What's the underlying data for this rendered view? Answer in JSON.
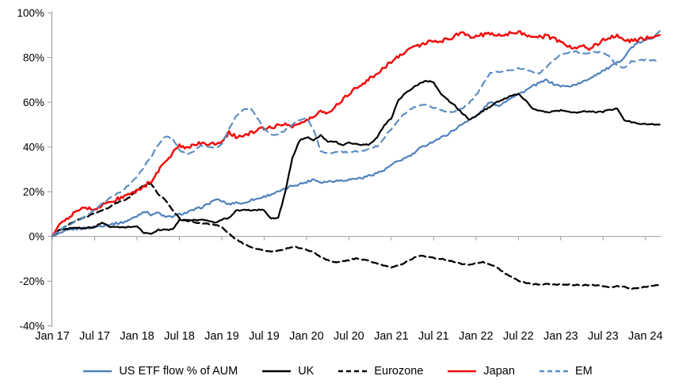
{
  "chart_data": {
    "type": "line",
    "title": "",
    "x_tick_labels": [
      "Jan 17",
      "Jul 17",
      "Jan 18",
      "Jul 18",
      "Jan 19",
      "Jul 19",
      "Jan 20",
      "Jul 20",
      "Jan 21",
      "Jul 21",
      "Jan 22",
      "Jul 22",
      "Jan 23",
      "Jul 23",
      "Jan 24"
    ],
    "x_start": "Jan 2017",
    "x_end": "Mar 2024",
    "x_frequency": "monthly",
    "x_label_every_months": 6,
    "y_axis": {
      "min": -40,
      "max": 100,
      "step": 20,
      "tick_labels": [
        "100%",
        "80%",
        "60%",
        "40%",
        "20%",
        "0%",
        "-20%",
        "-40%"
      ],
      "format": "percent",
      "zero_line": true,
      "grid": false
    },
    "legend_position": "bottom",
    "series": [
      {
        "name": "US ETF flow % of AUM",
        "color": "#4f81bd",
        "line_style": "solid",
        "values": [
          0,
          1.5,
          2.5,
          3.2,
          3.6,
          3.8,
          4.2,
          4.8,
          5.3,
          5.8,
          6.3,
          7.5,
          9.2,
          11.3,
          9.8,
          10.6,
          8.6,
          8.9,
          9.9,
          10.6,
          11.8,
          12.9,
          14.3,
          16.5,
          15.8,
          14.3,
          15.3,
          14.6,
          16.2,
          16.8,
          17.8,
          18.9,
          19.9,
          21.2,
          22.7,
          23.4,
          24.3,
          25.6,
          24.2,
          24.6,
          24.9,
          25.1,
          25.4,
          25.9,
          26.2,
          27.4,
          28.4,
          29.6,
          31.9,
          33.6,
          35.1,
          36.6,
          39.3,
          41.0,
          42.6,
          44.1,
          45.7,
          47.9,
          50.1,
          52.3,
          53.6,
          56.8,
          60.3,
          58.2,
          60.0,
          62.3,
          63.6,
          65.2,
          67.1,
          68.6,
          70.0,
          68.1,
          67.3,
          67.0,
          67.9,
          68.8,
          70.6,
          72.4,
          74.1,
          75.7,
          77.6,
          80.2,
          84.5,
          86.6,
          87.6,
          88.9,
          91.8
        ]
      },
      {
        "name": "UK",
        "color": "#000000",
        "line_style": "solid",
        "values": [
          0,
          3.0,
          3.6,
          3.8,
          3.7,
          3.9,
          4.1,
          6.3,
          4.4,
          4.1,
          4.0,
          4.3,
          4.6,
          1.5,
          1.2,
          2.9,
          3.0,
          3.1,
          7.2,
          7.3,
          7.2,
          7.4,
          7.3,
          5.9,
          7.6,
          8.3,
          11.6,
          11.8,
          11.7,
          11.9,
          11.8,
          7.9,
          8.3,
          20.0,
          35.0,
          42.8,
          44.4,
          43.2,
          45.3,
          42.2,
          42.6,
          40.6,
          41.9,
          41.3,
          40.9,
          41.2,
          44.2,
          49.8,
          52.8,
          61.0,
          64.1,
          66.3,
          68.3,
          69.6,
          69.0,
          63.9,
          61.0,
          58.5,
          55.2,
          52.4,
          53.6,
          56.2,
          58.1,
          60.1,
          61.6,
          62.8,
          63.6,
          60.8,
          57.3,
          56.1,
          55.5,
          55.9,
          56.4,
          55.8,
          55.4,
          55.7,
          56.0,
          55.5,
          55.8,
          56.6,
          57.2,
          52.0,
          51.1,
          50.6,
          50.3,
          50.1,
          50.0
        ]
      },
      {
        "name": "Eurozone",
        "color": "#000000",
        "line_style": "dashed",
        "values": [
          0,
          2.5,
          4.8,
          6.4,
          7.8,
          9.0,
          10.3,
          11.6,
          13.0,
          14.9,
          16.0,
          17.5,
          21.0,
          22.8,
          23.6,
          19.0,
          16.2,
          12.0,
          8.1,
          7.0,
          6.4,
          6.0,
          5.6,
          5.3,
          4.0,
          1.4,
          -1.2,
          -3.2,
          -4.6,
          -5.6,
          -6.4,
          -6.8,
          -6.5,
          -5.6,
          -4.6,
          -5.1,
          -6.0,
          -7.1,
          -9.2,
          -10.6,
          -11.7,
          -11.1,
          -10.6,
          -9.9,
          -10.3,
          -11.0,
          -12.1,
          -13.1,
          -13.8,
          -13.0,
          -11.6,
          -9.9,
          -8.6,
          -9.1,
          -9.6,
          -10.1,
          -10.6,
          -11.5,
          -12.2,
          -12.7,
          -12.1,
          -11.6,
          -12.6,
          -14.1,
          -16.3,
          -18.1,
          -19.8,
          -20.8,
          -21.3,
          -21.5,
          -21.3,
          -21.5,
          -21.6,
          -21.4,
          -21.7,
          -21.9,
          -21.6,
          -21.9,
          -22.1,
          -22.7,
          -22.3,
          -22.6,
          -23.4,
          -23.0,
          -22.4,
          -22.0,
          -21.7
        ]
      },
      {
        "name": "Japan",
        "color": "#f20d0d",
        "line_style": "solid",
        "values": [
          0,
          5.5,
          8.0,
          10.0,
          12.6,
          12.4,
          12.6,
          13.6,
          15.4,
          16.5,
          17.4,
          18.6,
          20.6,
          22.4,
          24.6,
          29.5,
          33.4,
          37.0,
          40.4,
          40.0,
          40.6,
          41.6,
          41.0,
          41.6,
          42.6,
          46.4,
          44.6,
          44.9,
          46.1,
          47.4,
          48.4,
          49.0,
          49.6,
          50.2,
          49.4,
          50.4,
          51.6,
          53.6,
          55.9,
          55.4,
          57.9,
          61.0,
          64.0,
          66.4,
          68.4,
          70.6,
          73.0,
          75.6,
          78.0,
          80.6,
          82.9,
          84.6,
          85.6,
          86.6,
          87.1,
          87.4,
          88.1,
          89.6,
          90.9,
          89.6,
          89.7,
          90.1,
          90.6,
          90.0,
          90.5,
          91.0,
          91.4,
          90.4,
          89.5,
          89.0,
          89.6,
          88.4,
          86.4,
          85.4,
          84.1,
          85.2,
          84.0,
          86.0,
          87.6,
          89.2,
          90.0,
          87.4,
          87.6,
          88.1,
          88.6,
          89.1,
          90.1
        ]
      },
      {
        "name": "EM",
        "color": "#5b8ec4",
        "line_style": "dashed",
        "values": [
          0,
          2.8,
          4.8,
          6.3,
          7.8,
          9.6,
          11.8,
          14.6,
          16.8,
          18.8,
          20.8,
          23.4,
          26.8,
          31.0,
          35.8,
          41.0,
          44.8,
          44.0,
          38.6,
          37.0,
          38.1,
          40.4,
          40.0,
          39.6,
          41.0,
          47.8,
          53.6,
          56.4,
          57.6,
          53.0,
          48.0,
          45.7,
          45.5,
          47.6,
          50.1,
          52.3,
          53.1,
          47.8,
          38.3,
          37.3,
          37.6,
          37.9,
          37.5,
          37.9,
          38.1,
          39.1,
          40.4,
          44.1,
          48.1,
          52.1,
          55.2,
          57.4,
          58.7,
          58.9,
          57.6,
          56.4,
          55.5,
          56.1,
          57.1,
          59.6,
          63.1,
          68.1,
          72.9,
          73.6,
          74.1,
          74.4,
          75.1,
          74.6,
          73.4,
          72.6,
          75.9,
          79.1,
          81.1,
          82.1,
          82.6,
          82.1,
          82.0,
          82.6,
          82.1,
          80.1,
          76.4,
          75.4,
          78.4,
          78.6,
          79.1,
          78.6,
          78.4
        ]
      }
    ]
  }
}
